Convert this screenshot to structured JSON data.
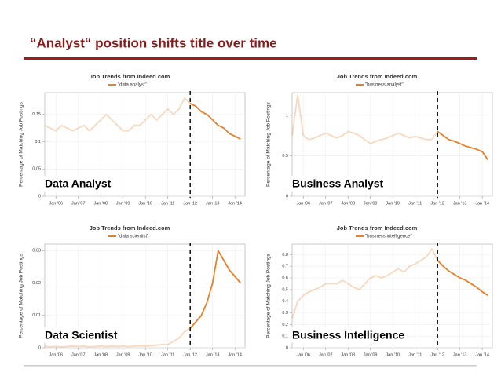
{
  "header": {
    "title": "“Analyst“ position shifts title over time"
  },
  "chart_data": [
    {
      "type": "line",
      "title": "Job Trends from Indeed.com",
      "ylabel": "Percentage of Matching Job Postings",
      "label": "Data Analyst",
      "vline": 2012,
      "grid": true,
      "x": [
        2005.5,
        2005.75,
        2006,
        2006.25,
        2006.5,
        2006.75,
        2007,
        2007.25,
        2007.5,
        2007.75,
        2008,
        2008.25,
        2008.5,
        2008.75,
        2009,
        2009.25,
        2009.5,
        2009.75,
        2010,
        2010.25,
        2010.5,
        2010.75,
        2011,
        2011.25,
        2011.5,
        2011.75,
        2012,
        2012.25,
        2012.5,
        2012.75,
        2013,
        2013.25,
        2013.5,
        2013.75,
        2014,
        2014.25
      ],
      "series": [
        {
          "name": "\"data analyst\"",
          "color": "#e8802a",
          "values": [
            0.13,
            0.125,
            0.12,
            0.13,
            0.125,
            0.12,
            0.125,
            0.13,
            0.12,
            0.13,
            0.14,
            0.15,
            0.14,
            0.13,
            0.12,
            0.12,
            0.13,
            0.13,
            0.14,
            0.15,
            0.14,
            0.15,
            0.16,
            0.15,
            0.16,
            0.18,
            0.17,
            0.165,
            0.155,
            0.15,
            0.14,
            0.13,
            0.125,
            0.115,
            0.11,
            0.105
          ]
        }
      ],
      "xlim": [
        2005.5,
        2014.45
      ],
      "ylim": [
        0,
        0.19
      ],
      "yticks": [
        0,
        0.05,
        0.1,
        0.15
      ],
      "xticks": [
        {
          "value": 2006,
          "label": "Jan '06"
        },
        {
          "value": 2007,
          "label": "Jan '07"
        },
        {
          "value": 2008,
          "label": "Jan '08"
        },
        {
          "value": 2009,
          "label": "Jan '09"
        },
        {
          "value": 2010,
          "label": "Jan '10"
        },
        {
          "value": 2011,
          "label": "Jan '11"
        },
        {
          "value": 2012,
          "label": "Jan '12"
        },
        {
          "value": 2013,
          "label": "Jan '13"
        },
        {
          "value": 2014,
          "label": "Jan '14"
        }
      ]
    },
    {
      "type": "line",
      "title": "Job Trends from Indeed.com",
      "ylabel": "Percentage of Matching Job Postings",
      "label": "Business Analyst",
      "vline": 2012,
      "grid": true,
      "x": [
        2005.5,
        2005.75,
        2006,
        2006.25,
        2006.5,
        2006.75,
        2007,
        2007.25,
        2007.5,
        2007.75,
        2008,
        2008.25,
        2008.5,
        2008.75,
        2009,
        2009.25,
        2009.5,
        2009.75,
        2010,
        2010.25,
        2010.5,
        2010.75,
        2011,
        2011.25,
        2011.5,
        2011.75,
        2012,
        2012.25,
        2012.5,
        2012.75,
        2013,
        2013.25,
        2013.5,
        2013.75,
        2014,
        2014.25
      ],
      "series": [
        {
          "name": "\"business analyst\"",
          "color": "#e8802a",
          "values": [
            0.75,
            1.25,
            0.75,
            0.7,
            0.72,
            0.75,
            0.78,
            0.75,
            0.72,
            0.75,
            0.8,
            0.78,
            0.75,
            0.7,
            0.65,
            0.68,
            0.7,
            0.72,
            0.75,
            0.78,
            0.75,
            0.72,
            0.74,
            0.72,
            0.7,
            0.7,
            0.8,
            0.75,
            0.7,
            0.68,
            0.65,
            0.62,
            0.6,
            0.58,
            0.55,
            0.45
          ]
        }
      ],
      "xlim": [
        2005.5,
        2014.45
      ],
      "ylim": [
        0,
        1.28
      ],
      "yticks": [
        0,
        0.5,
        1
      ],
      "xticks": [
        {
          "value": 2006,
          "label": "Jan '06"
        },
        {
          "value": 2007,
          "label": "Jan '07"
        },
        {
          "value": 2008,
          "label": "Jan '08"
        },
        {
          "value": 2009,
          "label": "Jan '09"
        },
        {
          "value": 2010,
          "label": "Jan '10"
        },
        {
          "value": 2011,
          "label": "Jan '11"
        },
        {
          "value": 2012,
          "label": "Jan '12"
        },
        {
          "value": 2013,
          "label": "Jan '13"
        },
        {
          "value": 2014,
          "label": "Jan '14"
        }
      ]
    },
    {
      "type": "line",
      "title": "Job Trends from Indeed.com",
      "ylabel": "Percentage of Matching Job Postings",
      "label": "Data Scientist",
      "vline": 2012,
      "grid": true,
      "x": [
        2005.5,
        2005.75,
        2006,
        2006.25,
        2006.5,
        2006.75,
        2007,
        2007.25,
        2007.5,
        2007.75,
        2008,
        2008.25,
        2008.5,
        2008.75,
        2009,
        2009.25,
        2009.5,
        2009.75,
        2010,
        2010.25,
        2010.5,
        2010.75,
        2011,
        2011.25,
        2011.5,
        2011.75,
        2012,
        2012.25,
        2012.5,
        2012.75,
        2013,
        2013.25,
        2013.5,
        2013.75,
        2014,
        2014.25
      ],
      "series": [
        {
          "name": "\"data scientist\"",
          "color": "#e8802a",
          "values": [
            0.0005,
            0.0003,
            0.0004,
            0.0003,
            0.0004,
            0.0005,
            0.0004,
            0.0005,
            0.0003,
            0.0004,
            0.0005,
            0.0004,
            0.0005,
            0.0004,
            0.0005,
            0.0004,
            0.0005,
            0.0006,
            0.0005,
            0.0006,
            0.0008,
            0.001,
            0.001,
            0.002,
            0.003,
            0.005,
            0.006,
            0.008,
            0.01,
            0.014,
            0.02,
            0.03,
            0.027,
            0.024,
            0.022,
            0.02
          ]
        }
      ],
      "xlim": [
        2005.5,
        2014.45
      ],
      "ylim": [
        0,
        0.032
      ],
      "yticks": [
        0,
        0.01,
        0.02,
        0.03
      ],
      "xticks": [
        {
          "value": 2006,
          "label": "Jan '06"
        },
        {
          "value": 2007,
          "label": "Jan '07"
        },
        {
          "value": 2008,
          "label": "Jan '08"
        },
        {
          "value": 2009,
          "label": "Jan '09"
        },
        {
          "value": 2010,
          "label": "Jan '10"
        },
        {
          "value": 2011,
          "label": "Jan '11"
        },
        {
          "value": 2012,
          "label": "Jan '12"
        },
        {
          "value": 2013,
          "label": "Jan '13"
        },
        {
          "value": 2014,
          "label": "Jan '14"
        }
      ]
    },
    {
      "type": "line",
      "title": "Job Trends from Indeed.com",
      "ylabel": "Percentage of Matching Job Postings",
      "label": "Business Intelligence",
      "vline": 2012,
      "grid": true,
      "x": [
        2005.5,
        2005.75,
        2006,
        2006.25,
        2006.5,
        2006.75,
        2007,
        2007.25,
        2007.5,
        2007.75,
        2008,
        2008.25,
        2008.5,
        2008.75,
        2009,
        2009.25,
        2009.5,
        2009.75,
        2010,
        2010.25,
        2010.5,
        2010.75,
        2011,
        2011.25,
        2011.5,
        2011.75,
        2012,
        2012.25,
        2012.5,
        2012.75,
        2013,
        2013.25,
        2013.5,
        2013.75,
        2014,
        2014.25
      ],
      "series": [
        {
          "name": "\"business intelligence\"",
          "color": "#e8802a",
          "values": [
            0.25,
            0.4,
            0.45,
            0.48,
            0.5,
            0.52,
            0.55,
            0.55,
            0.55,
            0.58,
            0.55,
            0.52,
            0.5,
            0.55,
            0.6,
            0.62,
            0.6,
            0.62,
            0.65,
            0.68,
            0.65,
            0.7,
            0.72,
            0.75,
            0.78,
            0.85,
            0.75,
            0.7,
            0.66,
            0.63,
            0.6,
            0.58,
            0.55,
            0.52,
            0.48,
            0.45
          ]
        }
      ],
      "xlim": [
        2005.5,
        2014.45
      ],
      "ylim": [
        0,
        0.89
      ],
      "yticks": [
        0,
        0.1,
        0.2,
        0.3,
        0.4,
        0.5,
        0.6,
        0.7,
        0.8
      ],
      "xticks": [
        {
          "value": 2006,
          "label": "Jan '06"
        },
        {
          "value": 2007,
          "label": "Jan '07"
        },
        {
          "value": 2008,
          "label": "Jan '08"
        },
        {
          "value": 2009,
          "label": "Jan '09"
        },
        {
          "value": 2010,
          "label": "Jan '10"
        },
        {
          "value": 2011,
          "label": "Jan '11"
        },
        {
          "value": 2012,
          "label": "Jan '12"
        },
        {
          "value": 2013,
          "label": "Jan '13"
        },
        {
          "value": 2014,
          "label": "Jan '14"
        }
      ]
    }
  ]
}
